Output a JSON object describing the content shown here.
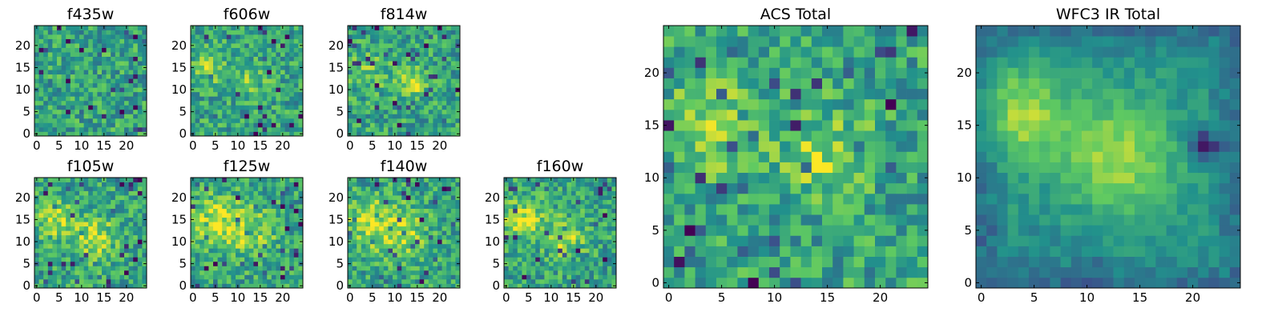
{
  "figure": {
    "colormap": "viridis",
    "colors": [
      "#440154",
      "#3b528b",
      "#21918c",
      "#5ec962",
      "#fde725"
    ]
  },
  "chart_data": [
    {
      "type": "heatmap",
      "title": "f435w",
      "xticks": [
        0,
        5,
        10,
        15,
        20
      ],
      "yticks": [
        0,
        5,
        10,
        15,
        20
      ],
      "xlim": [
        0,
        24
      ],
      "ylim": [
        0,
        24
      ],
      "grid": false,
      "texture": "noise",
      "features": []
    },
    {
      "type": "heatmap",
      "title": "f606w",
      "xticks": [
        0,
        5,
        10,
        15,
        20
      ],
      "yticks": [
        0,
        5,
        10,
        15,
        20
      ],
      "xlim": [
        0,
        24
      ],
      "ylim": [
        0,
        24
      ],
      "grid": false,
      "texture": "noise",
      "features": [
        [
          4,
          15,
          2.5,
          0.25
        ],
        [
          13,
          12,
          2.5,
          0.25
        ]
      ]
    },
    {
      "type": "heatmap",
      "title": "f814w",
      "xticks": [
        0,
        5,
        10,
        15,
        20
      ],
      "yticks": [
        0,
        5,
        10,
        15,
        20
      ],
      "xlim": [
        0,
        24
      ],
      "ylim": [
        0,
        24
      ],
      "grid": false,
      "texture": "noise",
      "features": [
        [
          4,
          14,
          3,
          0.2
        ],
        [
          14,
          11.5,
          2,
          0.4
        ]
      ]
    },
    {
      "type": "heatmap",
      "title": "f105w",
      "xticks": [
        0,
        5,
        10,
        15,
        20
      ],
      "yticks": [
        0,
        5,
        10,
        15,
        20
      ],
      "xlim": [
        0,
        24
      ],
      "ylim": [
        0,
        24
      ],
      "grid": false,
      "texture": "noise",
      "features": [
        [
          4,
          15,
          3,
          0.3
        ],
        [
          13,
          11,
          3.5,
          0.3
        ]
      ]
    },
    {
      "type": "heatmap",
      "title": "f125w",
      "xticks": [
        0,
        5,
        10,
        15,
        20
      ],
      "yticks": [
        0,
        5,
        10,
        15,
        20
      ],
      "xlim": [
        0,
        24
      ],
      "ylim": [
        0,
        24
      ],
      "grid": false,
      "texture": "noise",
      "features": [
        [
          5,
          15,
          4,
          0.3
        ],
        [
          13,
          12,
          4,
          0.25
        ]
      ]
    },
    {
      "type": "heatmap",
      "title": "f140w",
      "xticks": [
        0,
        5,
        10,
        15,
        20
      ],
      "yticks": [
        0,
        5,
        10,
        15,
        20
      ],
      "xlim": [
        0,
        24
      ],
      "ylim": [
        0,
        24
      ],
      "grid": false,
      "texture": "noise",
      "features": [
        [
          4,
          15,
          3.5,
          0.3
        ],
        [
          11,
          12,
          4,
          0.3
        ]
      ]
    },
    {
      "type": "heatmap",
      "title": "f160w",
      "xticks": [
        0,
        5,
        10,
        15,
        20
      ],
      "yticks": [
        0,
        5,
        10,
        15,
        20
      ],
      "xlim": [
        0,
        24
      ],
      "ylim": [
        0,
        24
      ],
      "grid": false,
      "texture": "noise",
      "features": [
        [
          4,
          15,
          3,
          0.35
        ],
        [
          13,
          11,
          3,
          0.3
        ]
      ]
    },
    {
      "type": "heatmap",
      "title": "ACS Total",
      "xticks": [
        0,
        5,
        10,
        15,
        20
      ],
      "yticks": [
        0,
        5,
        10,
        15,
        20
      ],
      "xlim": [
        0,
        24
      ],
      "ylim": [
        0,
        24
      ],
      "grid": false,
      "texture": "noise",
      "features": [
        [
          4,
          15,
          3,
          0.25
        ],
        [
          15,
          12,
          3,
          0.25
        ]
      ]
    },
    {
      "type": "heatmap",
      "title": "WFC3 IR Total",
      "xticks": [
        0,
        5,
        10,
        15,
        20
      ],
      "yticks": [
        0,
        5,
        10,
        15,
        20
      ],
      "xlim": [
        0,
        24
      ],
      "ylim": [
        0,
        24
      ],
      "grid": false,
      "texture": "smooth",
      "features": [
        [
          4,
          16,
          3,
          0.35
        ],
        [
          13,
          12,
          3.5,
          0.35
        ],
        [
          21,
          13,
          1,
          -0.45
        ]
      ]
    }
  ]
}
